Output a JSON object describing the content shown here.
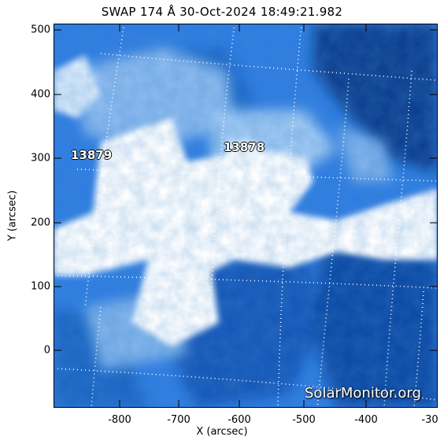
{
  "title": "SWAP 174 Å 30-Oct-2024 18:49:21.982",
  "x_axis": {
    "label": "X (arcsec)",
    "ticks": [
      "-800",
      "-700",
      "-600",
      "-500",
      "-400",
      "-30"
    ]
  },
  "y_axis": {
    "label": "Y (arcsec)",
    "ticks": [
      "500",
      "400",
      "300",
      "200",
      "100",
      "0"
    ]
  },
  "active_regions": [
    {
      "label": "13879"
    },
    {
      "label": "13878"
    }
  ],
  "watermark": "SolarMonitor.org",
  "colors": {
    "background": "#ffffff",
    "image_dark": "#0b3f8f",
    "image_mid": "#2f7de1",
    "image_light": "#9fc8f2",
    "saturated": "#ffffff",
    "grid": "#ffffff"
  }
}
